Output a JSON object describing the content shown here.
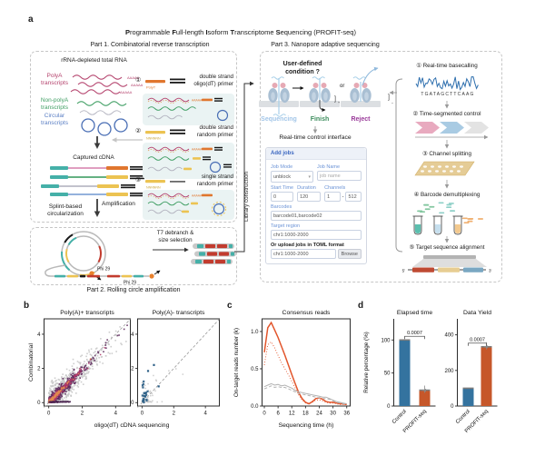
{
  "figure": {
    "panel_a": "a",
    "panel_b": "b",
    "panel_c": "c",
    "panel_d": "d",
    "title_plain": "Programmable Full-length Isoform Transcriptome Sequencing (PROFIT-seq)",
    "title_segments": [
      [
        "P",
        1
      ],
      [
        "rogrammable ",
        0
      ],
      [
        "F",
        1
      ],
      [
        "ull-length ",
        0
      ],
      [
        "I",
        1
      ],
      [
        "soform ",
        0
      ],
      [
        "T",
        1
      ],
      [
        "ranscriptome ",
        0
      ],
      [
        "S",
        1
      ],
      [
        "equencing (PROFIT-seq)",
        0
      ]
    ]
  },
  "part1": {
    "heading": "Part 1. Combinatorial reverse transcription",
    "rna_heading": "rRNA-depleted total RNA",
    "groups": [
      {
        "l1": "PolyA",
        "l2": "transcripts"
      },
      {
        "l1": "Non-polyA",
        "l2": "transcripts"
      },
      {
        "l1": "Circular",
        "l2": "transcripts"
      }
    ],
    "polya_tail": "AAAAA",
    "captured": "Captured cDNA",
    "amplification": "Amplification",
    "splint_l1": "Splint-based",
    "splint_l2": "circularization",
    "primers": [
      {
        "num": "①",
        "l1": "double strand",
        "l2": "oligo(dT) primer",
        "tag": "PolyT"
      },
      {
        "num": "②",
        "l1": "double strand",
        "l2": "random primer",
        "tag": "NNNNNN"
      },
      {
        "num": "③",
        "l1": "single strand",
        "l2": "random primer",
        "tag": "NNNNNN"
      }
    ],
    "library_construction": "Library construction"
  },
  "part2": {
    "caption": "Part 2. Rolling circle amplification",
    "t7_l1": "T7 debranch &",
    "t7_l2": "size selection",
    "phi29": "Phi 29"
  },
  "part3": {
    "heading": "Part 3. Nanopore adaptive sequencing",
    "condition_l1": "User-defined",
    "condition_l2": "condition ?",
    "or_label": "or",
    "pores": [
      {
        "label": "Sequencing"
      },
      {
        "label": "Finish"
      },
      {
        "label": "Reject"
      }
    ],
    "interface_title": "Real-time control interface",
    "form": {
      "header": "Add jobs",
      "job_mode_label": "Job Mode",
      "job_mode_value": "unblock",
      "job_name_label": "Job Name",
      "job_name_placeholder": "job name",
      "start_time_label": "Start Time",
      "start_time_value": "0",
      "duration_label": "Duration",
      "duration_value": "120",
      "channels_label": "Channels",
      "channels_from": "1",
      "channels_dash": "-",
      "channels_to": "512",
      "barcodes_label": "Barcodes",
      "barcodes_value": "barcode01,barcode02",
      "target_label": "Target region",
      "target_value": "chr1:1000-2000",
      "upload_label": "Or upload jobs in TOML format",
      "upload_value": "chr1:1000-2000",
      "browse_label": "Browse"
    },
    "steps": [
      {
        "num": "①",
        "label": "Real-time basecalling"
      },
      {
        "num": "②",
        "label": "Time-segmented control"
      },
      {
        "num": "③",
        "label": "Channel splitting"
      },
      {
        "num": "④",
        "label": "Barcode demultiplexing"
      },
      {
        "num": "⑤",
        "label": "Target sequence alignment"
      }
    ],
    "basecall_seq": "TGATAGCTTCAAG",
    "five_prime": "5'",
    "three_prime": "3'"
  },
  "palette": {
    "polya_pink": "#b5446e",
    "non_polya_green": "#3f9e63",
    "circular_blue": "#4a6fb5",
    "label_blue": "#5b7fc4",
    "teal": "#45b0a8",
    "yellow": "#ecc352",
    "orange": "#e0762e",
    "red": "#c23b2e",
    "gray_rna": "#b4b4c0",
    "pink_line": "#d886b0",
    "blue_line": "#7a9fd4",
    "membrane": "#dcdfe2",
    "pore_body": "#a9bfd3",
    "pore_top": "#e6a9b4",
    "strand_blue": "#a8cfe8",
    "seq_label": "#a3c6e8",
    "finish_green": "#3e8e5e",
    "reject_purple": "#993a99",
    "form_blue": "#5b8ad0",
    "chevron_pink": "#e8aabf",
    "chevron_blue": "#a9cbe3",
    "chevron_gray": "#e3e3e3",
    "flowcell_tan": "#e5cc96",
    "signal_blue": "#2e6fae",
    "dash_green": "#83c79f",
    "dash_teal": "#8fd0c8",
    "dash_orange": "#f0b070",
    "align_red": "#bf4a33",
    "align_yellow": "#e7cd92",
    "align_blue": "#7aa7c2",
    "bar_blue": "#34739f",
    "bar_orange": "#c6572a"
  },
  "chart_data": [
    {
      "type": "scatter",
      "title": "Poly(A)+ transcripts",
      "xlabel": "oligo(dT) cDNA sequencing",
      "ylabel": "Combinatorial",
      "xlim": [
        -0.28,
        4.88
      ],
      "ylim": [
        -0.2,
        4.9
      ],
      "xticks": [
        0,
        2,
        4
      ],
      "yticks": [
        0,
        2,
        4
      ],
      "diagonal": true,
      "note": "density scatter of transcript abundance, combinatorial vs oligo(dT) sequencing",
      "layers": [
        {
          "name": "background",
          "color": "#c9c9c9",
          "n": 750,
          "xscale": 1.05,
          "slope": 0.9,
          "noise": 0.42,
          "size": 1.6,
          "seed": 11
        },
        {
          "name": "low-density",
          "color": "#5e2a5d",
          "n": 520,
          "xscale": 0.78,
          "slope": 0.95,
          "noise": 0.17,
          "size": 1.6,
          "seed": 22
        },
        {
          "name": "mid-density",
          "color": "#b0386a",
          "n": 300,
          "xscale": 0.55,
          "slope": 0.97,
          "noise": 0.09,
          "size": 1.5,
          "seed": 33
        },
        {
          "name": "high-density",
          "color": "#e08a50",
          "n": 170,
          "xscale": 0.33,
          "slope": 1.0,
          "noise": 0.05,
          "size": 1.4,
          "seed": 44
        },
        {
          "name": "zero-band",
          "color": "#4a2450",
          "n": 80,
          "band": [
            0,
            1.3,
            0.02,
            0.07
          ],
          "size": 1.4,
          "seed": 55
        }
      ]
    },
    {
      "type": "scatter",
      "title": "Poly(A)- transcripts",
      "xlabel": "oligo(dT) cDNA sequencing",
      "ylabel": "Combinatorial",
      "xlim": [
        -0.28,
        4.88
      ],
      "ylim": [
        -0.2,
        4.9
      ],
      "xticks": [
        0,
        2,
        4
      ],
      "yticks": [
        0,
        2,
        4
      ],
      "diagonal": true,
      "note": "poly(A)- transcripts detected mainly by combinatorial priming (points above diagonal near x=0)",
      "layers": [
        {
          "name": "background",
          "color": "#c9c9c9",
          "n": 50,
          "xscale": 0.5,
          "slope": 0.85,
          "noise": 0.5,
          "size": 1.5,
          "seed": 7
        },
        {
          "name": "polyA-minus",
          "color": "#2c5f86",
          "n": 26,
          "gaussx": 0.2,
          "gaussy": 0.62,
          "size": 2.2,
          "seed": 9,
          "extra": [
            [
              0.75,
              2.2
            ],
            [
              0.38,
              1.85
            ],
            [
              1.05,
              0.95
            ]
          ]
        }
      ]
    },
    {
      "type": "line",
      "title": "Consensus reads",
      "xlabel": "Sequencing time (h)",
      "ylabel": "On-target reads number (k)",
      "xlim": [
        -1,
        37.5
      ],
      "ylim": [
        0,
        1.17
      ],
      "xticks": [
        0,
        6,
        12,
        18,
        24,
        30,
        36
      ],
      "yticks": [
        0.0,
        0.5,
        1.0
      ],
      "x": [
        0,
        1.5,
        3,
        4.5,
        6,
        7.5,
        9,
        10.5,
        12,
        13.5,
        15,
        16.5,
        18,
        19.5,
        21,
        22.5,
        24,
        25.5,
        27,
        28.5,
        30,
        31.5,
        33,
        34.5,
        36
      ],
      "series": [
        {
          "name": "PROFIT-seq solid",
          "color": "#e2552b",
          "style": "solid",
          "width": 1.5,
          "values": [
            0.72,
            1.05,
            1.12,
            1.02,
            0.92,
            0.8,
            0.68,
            0.55,
            0.42,
            0.3,
            0.18,
            0.1,
            0.05,
            0.03,
            0.06,
            0.1,
            0.11,
            0.09,
            0.06,
            0.05,
            0.05,
            0.04,
            0.03,
            0.03,
            0.02
          ]
        },
        {
          "name": "PROFIT-seq dotted",
          "color": "#e2552b",
          "style": "dotted",
          "width": 1,
          "values": [
            0.55,
            0.82,
            0.86,
            0.78,
            0.68,
            0.58,
            0.5,
            0.42,
            0.33,
            0.24,
            0.15,
            0.08,
            0.04,
            0.03,
            0.05,
            0.08,
            0.08,
            0.07,
            0.05,
            0.04,
            0.04,
            0.03,
            0.02,
            0.02,
            0.02
          ]
        },
        {
          "name": "Control solid",
          "color": "#b3b3b3",
          "style": "solid",
          "width": 1,
          "values": [
            0.26,
            0.28,
            0.3,
            0.28,
            0.29,
            0.27,
            0.28,
            0.26,
            0.24,
            0.21,
            0.19,
            0.18,
            0.17,
            0.16,
            0.15,
            0.14,
            0.13,
            0.12,
            0.12,
            0.1,
            0.08,
            0.06,
            0.05,
            0.04,
            0.03
          ]
        },
        {
          "name": "Control dashed",
          "color": "#b3b3b3",
          "style": "dashed",
          "width": 1,
          "values": [
            0.23,
            0.25,
            0.27,
            0.25,
            0.26,
            0.25,
            0.25,
            0.23,
            0.21,
            0.19,
            0.17,
            0.16,
            0.15,
            0.14,
            0.13,
            0.12,
            0.11,
            0.1,
            0.1,
            0.09,
            0.07,
            0.05,
            0.04,
            0.03,
            0.03
          ]
        }
      ]
    },
    {
      "type": "bar",
      "title": "Elapsed time",
      "ylabel": "Relative percentage (%)",
      "categories": [
        "Control",
        "PROFIT-seq"
      ],
      "values": [
        100,
        24
      ],
      "colors": [
        "#34739f",
        "#c6572a"
      ],
      "yticks": [
        0,
        50,
        100
      ],
      "ylim": [
        0,
        132
      ],
      "pvalue": "0.0007"
    },
    {
      "type": "bar",
      "title": "Data Yield",
      "ylabel": "Relative percentage (%)",
      "categories": [
        "Control",
        "PROFIT-seq"
      ],
      "values": [
        100,
        333
      ],
      "colors": [
        "#34739f",
        "#c6572a"
      ],
      "yticks": [
        0,
        200,
        400
      ],
      "ylim": [
        0,
        490
      ],
      "pvalue": "0.0007"
    }
  ]
}
